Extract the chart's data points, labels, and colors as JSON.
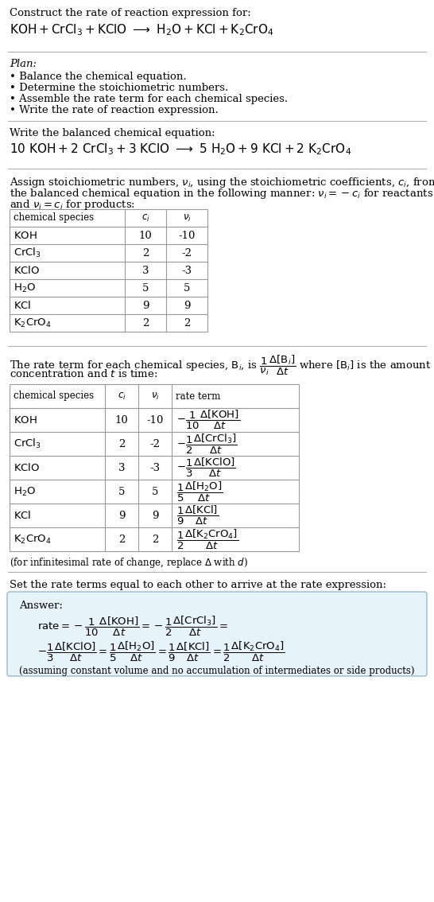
{
  "title_line1": "Construct the rate of reaction expression for:",
  "plan_header": "Plan:",
  "plan_items": [
    "• Balance the chemical equation.",
    "• Determine the stoichiometric numbers.",
    "• Assemble the rate term for each chemical species.",
    "• Write the rate of reaction expression."
  ],
  "balanced_header": "Write the balanced chemical equation:",
  "answer_box_header": "Answer:",
  "infinitesimal_note": "(for infinitesimal rate of change, replace Δ with d)",
  "set_rate_text": "Set the rate terms equal to each other to arrive at the rate expression:",
  "assuming_note": "(assuming constant volume and no accumulation of intermediates or side products)",
  "table1_rows": [
    [
      "KOH",
      "10",
      "-10"
    ],
    [
      "CrCl_3",
      "2",
      "-2"
    ],
    [
      "KClO",
      "3",
      "-3"
    ],
    [
      "H_2O",
      "5",
      "5"
    ],
    [
      "KCl",
      "9",
      "9"
    ],
    [
      "K_2CrO_4",
      "2",
      "2"
    ]
  ],
  "table2_rows": [
    [
      "KOH",
      "10",
      "-10"
    ],
    [
      "CrCl_3",
      "2",
      "-2"
    ],
    [
      "KClO",
      "3",
      "-3"
    ],
    [
      "H_2O",
      "5",
      "5"
    ],
    [
      "KCl",
      "9",
      "9"
    ],
    [
      "K_2CrO_4",
      "2",
      "2"
    ]
  ],
  "bg_color": "#ffffff",
  "table_border_color": "#999999",
  "answer_box_bg": "#e6f3f8",
  "answer_box_border": "#99bbcc",
  "text_color": "#000000",
  "line_color": "#aaaaaa"
}
